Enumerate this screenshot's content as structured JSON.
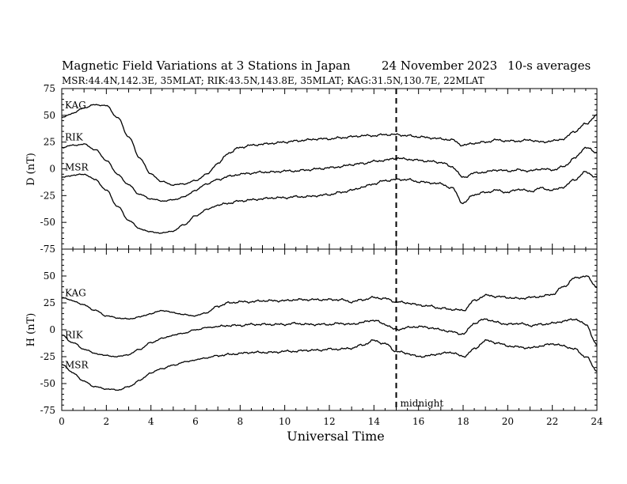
{
  "chart_data": [
    {
      "type": "line",
      "panel": "D",
      "ylabel": "D (nT)",
      "ylim": [
        -75,
        75
      ],
      "yticks": [
        75,
        50,
        25,
        0,
        -25,
        -50,
        -75
      ],
      "xlabel": "Universal Time",
      "xlim": [
        0,
        24
      ],
      "xticks": [
        0,
        2,
        4,
        6,
        8,
        10,
        12,
        14,
        16,
        18,
        20,
        22,
        24
      ],
      "x": [
        0,
        0.5,
        1,
        1.5,
        2,
        2.5,
        3,
        3.5,
        4,
        4.5,
        5,
        5.5,
        6,
        6.5,
        7,
        7.5,
        8,
        8.5,
        9,
        9.5,
        10,
        10.5,
        11,
        11.5,
        12,
        12.5,
        13,
        13.5,
        14,
        14.5,
        15,
        15.5,
        16,
        16.5,
        17,
        17.5,
        18,
        18.5,
        19,
        19.5,
        20,
        20.5,
        21,
        21.5,
        22,
        22.5,
        23,
        23.5,
        24
      ],
      "series": [
        {
          "name": "KAG",
          "values": [
            48,
            52,
            57,
            60,
            59,
            48,
            30,
            10,
            -5,
            -12,
            -15,
            -14,
            -11,
            -5,
            5,
            15,
            20,
            22,
            23,
            24,
            25,
            26,
            27,
            28,
            28,
            29,
            30,
            31,
            31,
            32,
            32,
            31,
            30,
            29,
            28,
            27,
            22,
            24,
            25,
            27,
            26,
            26,
            27,
            25,
            26,
            28,
            35,
            42,
            50
          ]
        },
        {
          "name": "RIK",
          "values": [
            20,
            22,
            23,
            18,
            8,
            -5,
            -15,
            -24,
            -28,
            -30,
            -29,
            -26,
            -20,
            -14,
            -10,
            -7,
            -5,
            -4,
            -3,
            -3,
            -2,
            -2,
            -1,
            0,
            1,
            2,
            4,
            5,
            7,
            8,
            10,
            9,
            8,
            7,
            6,
            2,
            -8,
            -4,
            -3,
            -1,
            -2,
            -1,
            -2,
            0,
            -1,
            2,
            10,
            20,
            15
          ]
        },
        {
          "name": "MSR",
          "values": [
            -8,
            -6,
            -5,
            -10,
            -20,
            -35,
            -48,
            -56,
            -59,
            -60,
            -58,
            -52,
            -44,
            -38,
            -34,
            -32,
            -30,
            -29,
            -28,
            -27,
            -27,
            -26,
            -26,
            -25,
            -24,
            -22,
            -20,
            -17,
            -14,
            -11,
            -10,
            -10,
            -12,
            -13,
            -14,
            -18,
            -32,
            -24,
            -22,
            -20,
            -22,
            -19,
            -21,
            -18,
            -20,
            -17,
            -10,
            -3,
            -8
          ]
        }
      ]
    },
    {
      "type": "line",
      "panel": "H",
      "ylabel": "H (nT)",
      "ylim": [
        -75,
        75
      ],
      "yticks": [
        50,
        25,
        0,
        -25,
        -50,
        -75
      ],
      "xlabel": "Universal Time",
      "xlim": [
        0,
        24
      ],
      "xticks": [
        0,
        2,
        4,
        6,
        8,
        10,
        12,
        14,
        16,
        18,
        20,
        22,
        24
      ],
      "x": [
        0,
        0.5,
        1,
        1.5,
        2,
        2.5,
        3,
        3.5,
        4,
        4.5,
        5,
        5.5,
        6,
        6.5,
        7,
        7.5,
        8,
        8.5,
        9,
        9.5,
        10,
        10.5,
        11,
        11.5,
        12,
        12.5,
        13,
        13.5,
        14,
        14.5,
        15,
        15.5,
        16,
        16.5,
        17,
        17.5,
        18,
        18.5,
        19,
        19.5,
        20,
        20.5,
        21,
        21.5,
        22,
        22.5,
        23,
        23.5,
        24
      ],
      "series": [
        {
          "name": "KAG",
          "values": [
            30,
            27,
            23,
            18,
            13,
            11,
            10,
            12,
            15,
            18,
            16,
            14,
            13,
            16,
            22,
            25,
            26,
            26,
            27,
            27,
            27,
            28,
            28,
            28,
            28,
            28,
            26,
            28,
            30,
            29,
            26,
            25,
            23,
            22,
            20,
            19,
            18,
            27,
            32,
            31,
            30,
            29,
            30,
            31,
            33,
            40,
            48,
            50,
            40
          ]
        },
        {
          "name": "RIK",
          "values": [
            -5,
            -12,
            -18,
            -22,
            -24,
            -25,
            -23,
            -18,
            -12,
            -8,
            -5,
            -3,
            0,
            2,
            3,
            4,
            4,
            5,
            5,
            5,
            5,
            6,
            5,
            5,
            5,
            6,
            5,
            7,
            9,
            5,
            0,
            2,
            3,
            2,
            0,
            -2,
            -4,
            6,
            10,
            7,
            5,
            6,
            4,
            5,
            6,
            8,
            10,
            5,
            -14
          ]
        },
        {
          "name": "MSR",
          "values": [
            -32,
            -40,
            -48,
            -53,
            -55,
            -56,
            -53,
            -47,
            -40,
            -36,
            -33,
            -30,
            -28,
            -26,
            -24,
            -23,
            -22,
            -21,
            -21,
            -21,
            -20,
            -20,
            -19,
            -19,
            -18,
            -18,
            -17,
            -14,
            -10,
            -13,
            -20,
            -22,
            -25,
            -24,
            -22,
            -21,
            -25,
            -18,
            -10,
            -12,
            -15,
            -16,
            -17,
            -15,
            -13,
            -15,
            -18,
            -25,
            -38
          ]
        }
      ]
    }
  ],
  "title": {
    "main": "Magnetic Field Variations at 3 Stations in Japan",
    "date": "24 November 2023",
    "averaging": "10-s averages",
    "stations": "MSR:44.4N,142.3E, 35MLAT;  RIK:43.5N,143.8E, 35MLAT;  KAG:31.5N,130.7E, 22MLAT"
  },
  "annotations": {
    "midnight_label": "midnight",
    "midnight_x": 15
  },
  "colors": {
    "line": "#000000",
    "background": "#ffffff"
  }
}
